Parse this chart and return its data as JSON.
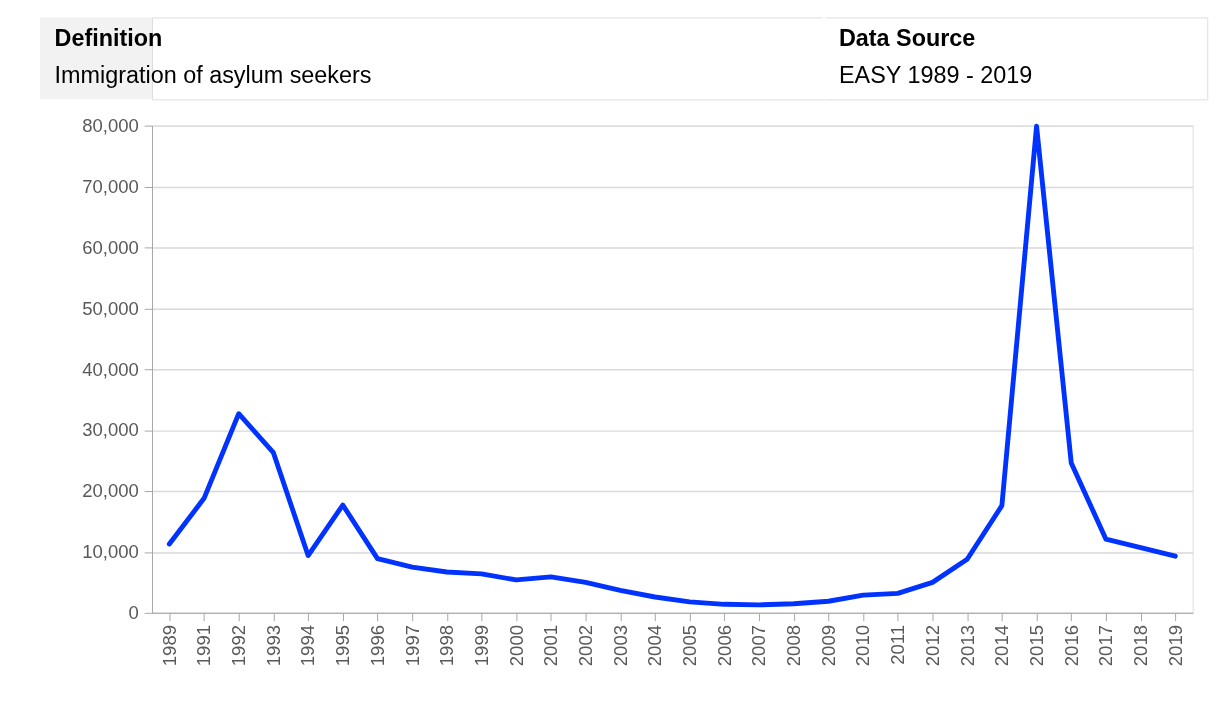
{
  "chart_data": {
    "type": "line",
    "title": "Definition",
    "subtitle": "Immigration of asylum seekers",
    "annotations": [
      "Data Source",
      "EASY 1989 - 2019"
    ],
    "categories": [
      "1989",
      "1991",
      "1992",
      "1993",
      "1994",
      "1995",
      "1996",
      "1997",
      "1998",
      "1999",
      "2000",
      "2001",
      "2002",
      "2003",
      "2004",
      "2005",
      "2006",
      "2007",
      "2008",
      "2009",
      "2010",
      "2011",
      "2012",
      "2013",
      "2014",
      "2015",
      "2016",
      "2017",
      "2018",
      "2019"
    ],
    "series": [
      {
        "color": "#0033ff",
        "values": [
          11300,
          18800,
          32700,
          26300,
          9400,
          17700,
          8900,
          7500,
          6700,
          6400,
          5400,
          5900,
          5000,
          3700,
          2600,
          1800,
          1400,
          1300,
          1500,
          1900,
          2900,
          3200,
          5000,
          8800,
          17600,
          79900,
          24600,
          12100,
          10700,
          9300
        ]
      }
    ],
    "ylim": [
      0,
      80000
    ],
    "yticks": [
      0,
      {
        "value": 10000,
        "label": "10,000"
      },
      {
        "value": 20000,
        "label": "20,000"
      },
      {
        "value": 30000,
        "label": "30,000"
      },
      {
        "value": 40000,
        "label": "40,000"
      },
      {
        "value": 50000,
        "label": "50,000"
      },
      {
        "value": 60000,
        "label": "60,000"
      },
      {
        "value": 70000,
        "label": "70,000"
      },
      {
        "value": 80000,
        "label": "80,000"
      }
    ],
    "grid": "y",
    "marker": "none",
    "line_style": "solid"
  }
}
